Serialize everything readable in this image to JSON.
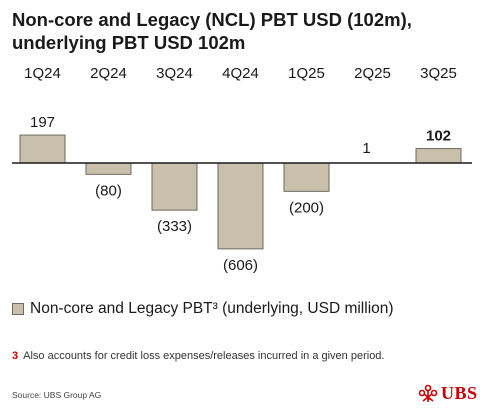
{
  "title": "Non-core and Legacy (NCL) PBT USD (102m), underlying PBT USD 102m",
  "chart_data": {
    "type": "bar",
    "categories": [
      "1Q24",
      "2Q24",
      "3Q24",
      "4Q24",
      "1Q25",
      "2Q25",
      "3Q25"
    ],
    "values": [
      197,
      -80,
      -333,
      -606,
      -200,
      1,
      102
    ],
    "value_labels": [
      "197",
      "(80)",
      "(333)",
      "(606)",
      "(200)",
      "1",
      "102"
    ],
    "emphasized_index": 6,
    "series": [
      {
        "name": "Non-core and Legacy PBT³ (underlying, USD million)",
        "values": [
          197,
          -80,
          -333,
          -606,
          -200,
          1,
          102
        ]
      }
    ],
    "ylim": [
      -650,
      200
    ],
    "grid": false,
    "legend_position": "bottom-left",
    "colors": {
      "bar_fill": "#c9c0ab",
      "bar_stroke": "#6e6a60",
      "baseline": "#1a1a1a"
    }
  },
  "legend": {
    "label": "Non-core and Legacy PBT³ (underlying, USD million)"
  },
  "footnote": {
    "number": "3",
    "text": "Also accounts for credit loss expenses/releases incurred in a given period."
  },
  "source": "Source: UBS Group AG",
  "logo": {
    "text": "UBS",
    "icon": "keys-icon",
    "color": "#cc0000"
  }
}
